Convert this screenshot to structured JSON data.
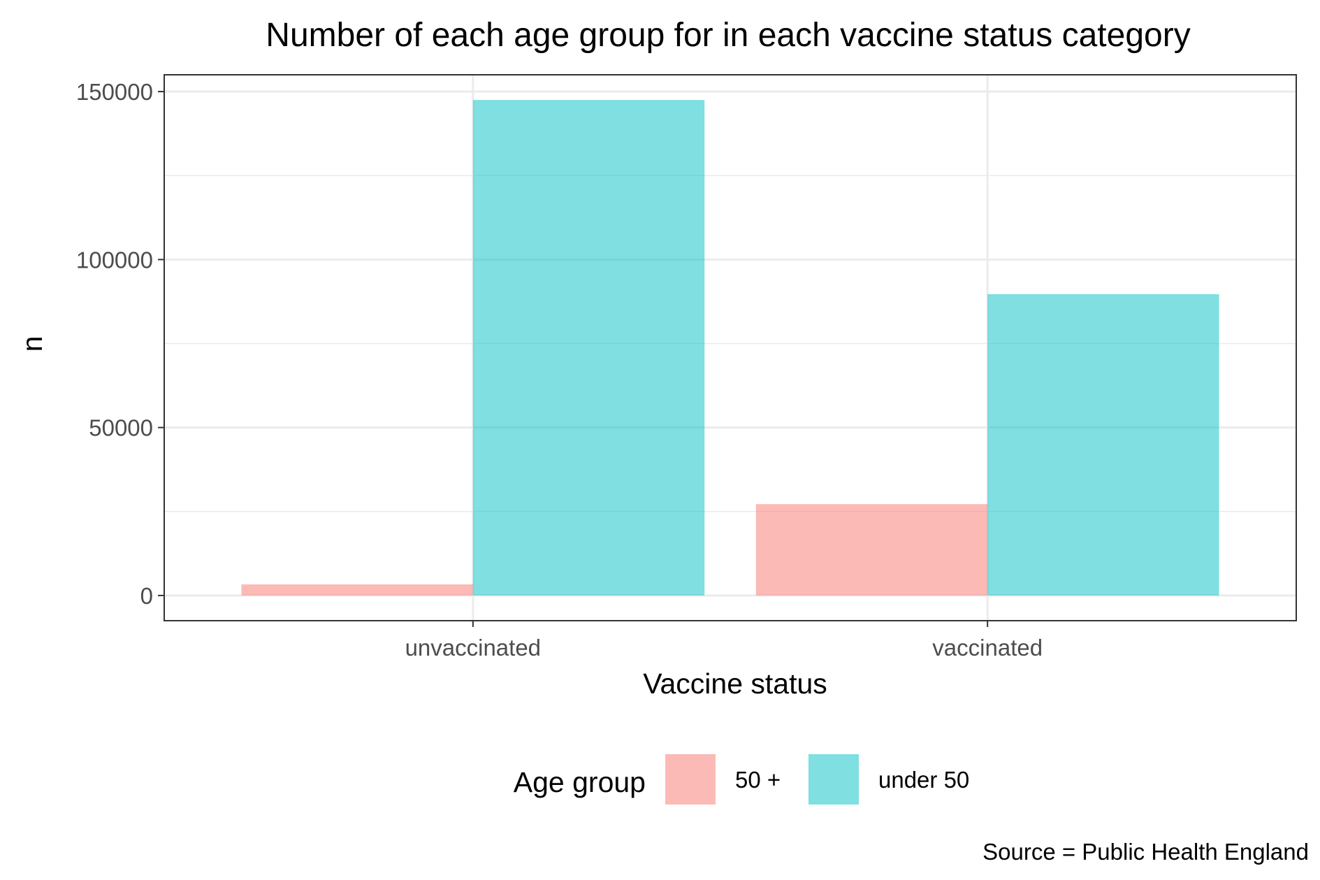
{
  "chart_data": {
    "type": "bar",
    "title": "Number of each age group for in each vaccine status category",
    "xlabel": "Vaccine status",
    "ylabel": "n",
    "categories": [
      "unvaccinated",
      "vaccinated"
    ],
    "series": [
      {
        "name": "50 +",
        "values": [
          3300,
          27200
        ],
        "color": "#F8766D"
      },
      {
        "name": "under 50",
        "values": [
          147500,
          89700
        ],
        "color": "#00BFC4"
      }
    ],
    "ylim": [
      -7500,
      155000
    ],
    "yticks": [
      0,
      50000,
      100000,
      150000
    ],
    "ytick_labels": [
      "0",
      "50000",
      "100000",
      "150000"
    ],
    "grid": true,
    "bar_opacity": 0.5,
    "legend": {
      "title": "Age group",
      "position": "bottom"
    },
    "caption": "Source = Public Health England"
  }
}
